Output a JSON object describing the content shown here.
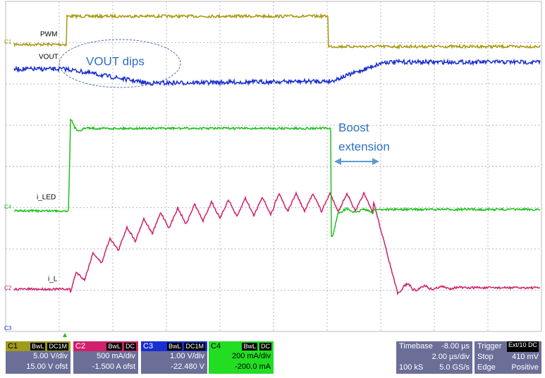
{
  "waveform_labels": [
    "PWM",
    "VOUT",
    "i_LED",
    "i_L"
  ],
  "channel_markers": [
    "C1",
    "C4",
    "C2",
    "C3"
  ],
  "annotations": {
    "vout_dips": "VOUT dips",
    "boost_extension": [
      "Boost",
      "extension"
    ]
  },
  "channels": [
    {
      "name": "C1",
      "flags": [
        "BwL",
        "DC1M"
      ],
      "lines": [
        "5.00 V/div",
        "15.00 V ofst"
      ]
    },
    {
      "name": "C2",
      "flags": [
        "BwL",
        "DC"
      ],
      "lines": [
        "500 mA/div",
        "-1.500 A ofst"
      ]
    },
    {
      "name": "C3",
      "flags": [
        "BwL",
        "DC1M"
      ],
      "lines": [
        "1.00 V/div",
        "-22.480 V"
      ]
    },
    {
      "name": "C4",
      "flags": [
        "BwL",
        "DC"
      ],
      "lines": [
        "200 mA/div",
        "-200.0 mA"
      ]
    }
  ],
  "timebase": {
    "title": "Timebase",
    "value": "-8.00 µs",
    "rows": [
      [
        "2.00 µs/div"
      ],
      [
        "100 kS",
        "5.0 GS/s"
      ]
    ]
  },
  "trigger": {
    "title": "Trigger",
    "badge": "Ext/10 DC",
    "rows": [
      [
        "Stop",
        "410 mV"
      ],
      [
        "Edge",
        "Positive"
      ]
    ]
  }
}
